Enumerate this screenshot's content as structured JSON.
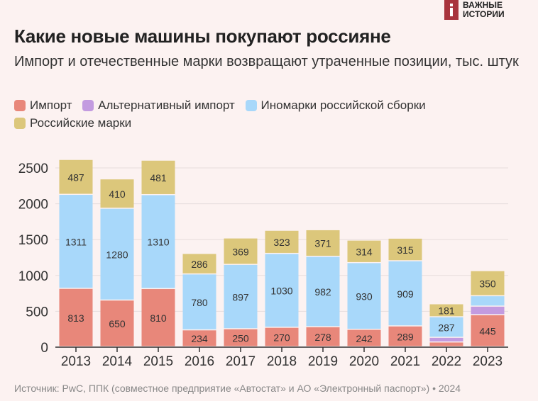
{
  "brand": {
    "line1": "ВАЖНЫЕ",
    "line2": "ИСТОРИИ"
  },
  "title": "Какие новые машины покупают россияне",
  "subtitle": "Импорт и отечественные марки возвращают утраченные позиции, тыс. штук",
  "source": "Источник: PwC, ППК (совместное предприятие «Автостат» и АО «Электронный паспорт») • 2024",
  "chart_data": {
    "type": "bar",
    "stacked": true,
    "categories": [
      "2013",
      "2014",
      "2015",
      "2016",
      "2017",
      "2018",
      "2019",
      "2020",
      "2021",
      "2022",
      "2023"
    ],
    "ylim": [
      0,
      2600
    ],
    "yticks": [
      0,
      500,
      1000,
      1500,
      2000,
      2500
    ],
    "grid": true,
    "legend_position": "top-left",
    "series": [
      {
        "name": "Импорт",
        "color": "#e8877a",
        "values": [
          813,
          650,
          810,
          234,
          250,
          270,
          278,
          242,
          289,
          65,
          445
        ],
        "labeled": [
          true,
          true,
          true,
          true,
          true,
          true,
          true,
          true,
          true,
          false,
          true
        ]
      },
      {
        "name": "Альтернативный импорт",
        "color": "#c39be0",
        "values": [
          0,
          0,
          0,
          0,
          0,
          0,
          0,
          0,
          0,
          65,
          120
        ],
        "labeled": [
          false,
          false,
          false,
          false,
          false,
          false,
          false,
          false,
          false,
          false,
          false
        ]
      },
      {
        "name": "Иномарки российской сборки",
        "color": "#a8d8fa",
        "values": [
          1311,
          1280,
          1310,
          780,
          897,
          1030,
          982,
          930,
          909,
          287,
          145
        ],
        "labeled": [
          true,
          true,
          true,
          true,
          true,
          true,
          true,
          true,
          true,
          true,
          false
        ]
      },
      {
        "name": "Российские марки",
        "color": "#dcc77b",
        "values": [
          487,
          410,
          481,
          286,
          369,
          323,
          371,
          314,
          315,
          181,
          350
        ],
        "labeled": [
          true,
          true,
          true,
          true,
          true,
          true,
          true,
          true,
          true,
          true,
          true
        ]
      }
    ]
  }
}
